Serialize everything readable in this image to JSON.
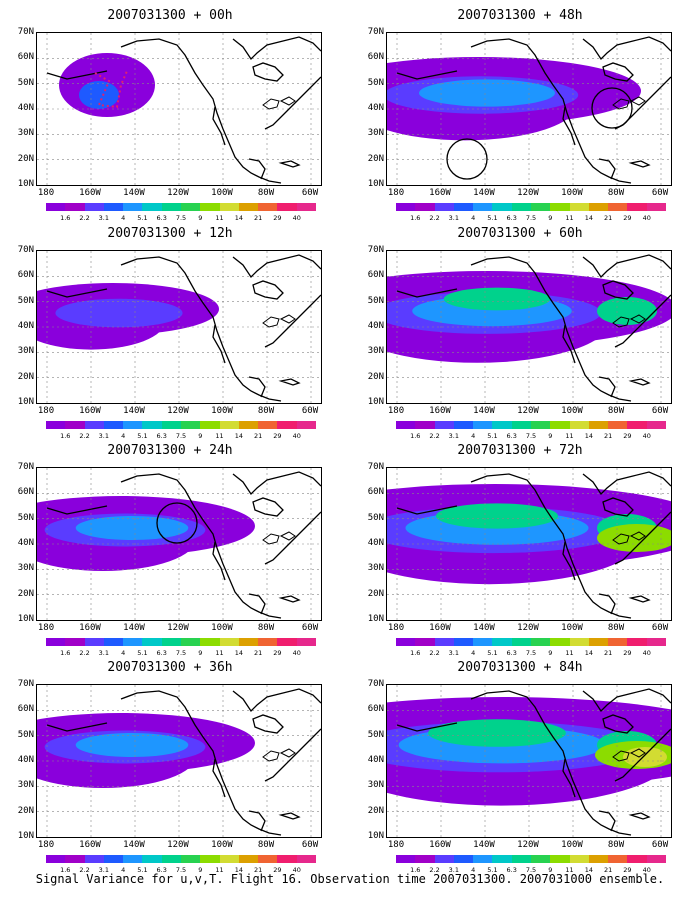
{
  "lat_labels": [
    "70N",
    "60N",
    "50N",
    "40N",
    "30N",
    "20N",
    "10N"
  ],
  "lon_labels": [
    "180",
    "160W",
    "140W",
    "120W",
    "100W",
    "80W",
    "60W"
  ],
  "colorbar": {
    "labels": [
      "1.6",
      "2.2",
      "3.1",
      "4",
      "5.1",
      "6.3",
      "7.5",
      "9",
      "11",
      "14",
      "21",
      "29",
      "40"
    ],
    "colors": [
      "#8a00dc",
      "#a000c8",
      "#5a3cff",
      "#1e5aff",
      "#1e96ff",
      "#00c8c8",
      "#00d28c",
      "#28d250",
      "#8cdc00",
      "#d2dc32",
      "#dca000",
      "#f06432",
      "#f01e6e",
      "#e6288c"
    ]
  },
  "panels": [
    {
      "title": "2007031300 + 00h",
      "level": 1,
      "circles": []
    },
    {
      "title": "2007031300 + 48h",
      "level": 4,
      "circles": [
        [
          80,
          126
        ],
        [
          225,
          75
        ]
      ]
    },
    {
      "title": "2007031300 + 12h",
      "level": 2,
      "circles": []
    },
    {
      "title": "2007031300 + 60h",
      "level": 5,
      "circles": []
    },
    {
      "title": "2007031300 + 24h",
      "level": 3,
      "circles": [
        [
          140,
          55
        ]
      ]
    },
    {
      "title": "2007031300 + 72h",
      "level": 6,
      "circles": []
    },
    {
      "title": "2007031300 + 36h",
      "level": 3,
      "circles": []
    },
    {
      "title": "2007031300 + 84h",
      "level": 7,
      "circles": []
    }
  ],
  "caption": "Signal Variance for u,v,T. Flight 16. Observation time 2007031300. 2007031000 ensemble."
}
